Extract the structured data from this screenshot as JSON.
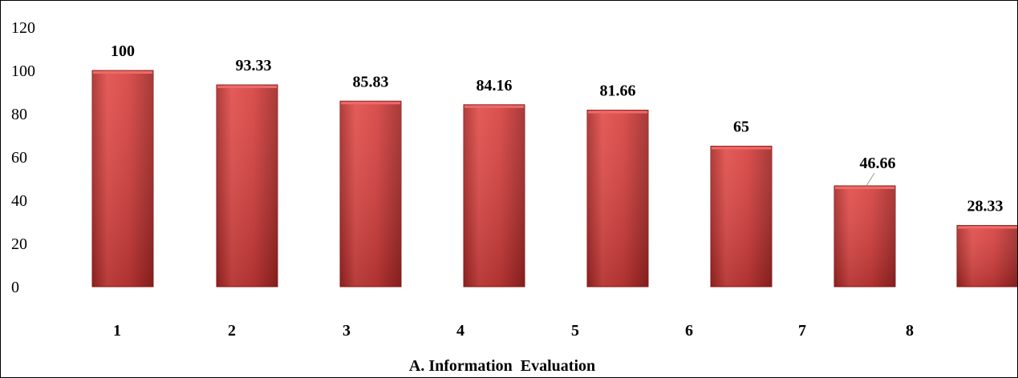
{
  "chart_data": {
    "type": "bar",
    "title": "",
    "xlabel": "A. Information  Evaluation",
    "ylabel": "",
    "ylim": [
      0,
      120
    ],
    "yticks": [
      0,
      20,
      40,
      60,
      80,
      100,
      120
    ],
    "categories": [
      "1",
      "2",
      "3",
      "4",
      "5",
      "6",
      "7",
      "8"
    ],
    "values": [
      100,
      93.33,
      85.83,
      84.16,
      81.66,
      65,
      46.66,
      28.33
    ],
    "data_labels": [
      "100",
      "93.33",
      "85.83",
      "84.16",
      "81.66",
      "65",
      "46.66",
      "28.33"
    ],
    "grid": false,
    "legend": "none",
    "bar_color": "#d9413f",
    "bar_edge_color": "#8e1f1d"
  }
}
